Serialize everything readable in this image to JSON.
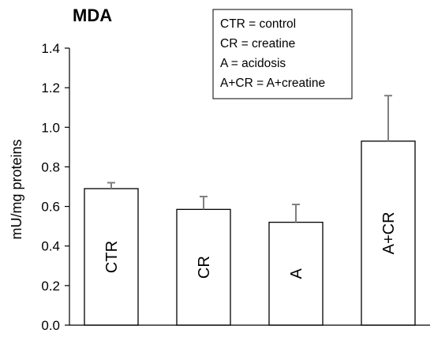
{
  "chart_data": {
    "type": "bar",
    "title": "MDA",
    "ylabel": "mU/mg proteins",
    "xlabel": "",
    "ylim": [
      0,
      1.4
    ],
    "yticks": [
      "0.0",
      "0.2",
      "0.4",
      "0.6",
      "0.8",
      "1.0",
      "1.2",
      "1.4"
    ],
    "categories": [
      "CTR",
      "CR",
      "A",
      "A+CR"
    ],
    "values": [
      0.69,
      0.585,
      0.52,
      0.93
    ],
    "errors": [
      0.03,
      0.065,
      0.09,
      0.23
    ],
    "grid": false,
    "legend_position": "top-right",
    "legend": [
      "CTR = control",
      "CR = creatine",
      "A = acidosis",
      "A+CR = A+creatine"
    ],
    "bar_fill": "#ffffff",
    "bar_stroke": "#000000",
    "error_color": "#7f7f7f"
  }
}
